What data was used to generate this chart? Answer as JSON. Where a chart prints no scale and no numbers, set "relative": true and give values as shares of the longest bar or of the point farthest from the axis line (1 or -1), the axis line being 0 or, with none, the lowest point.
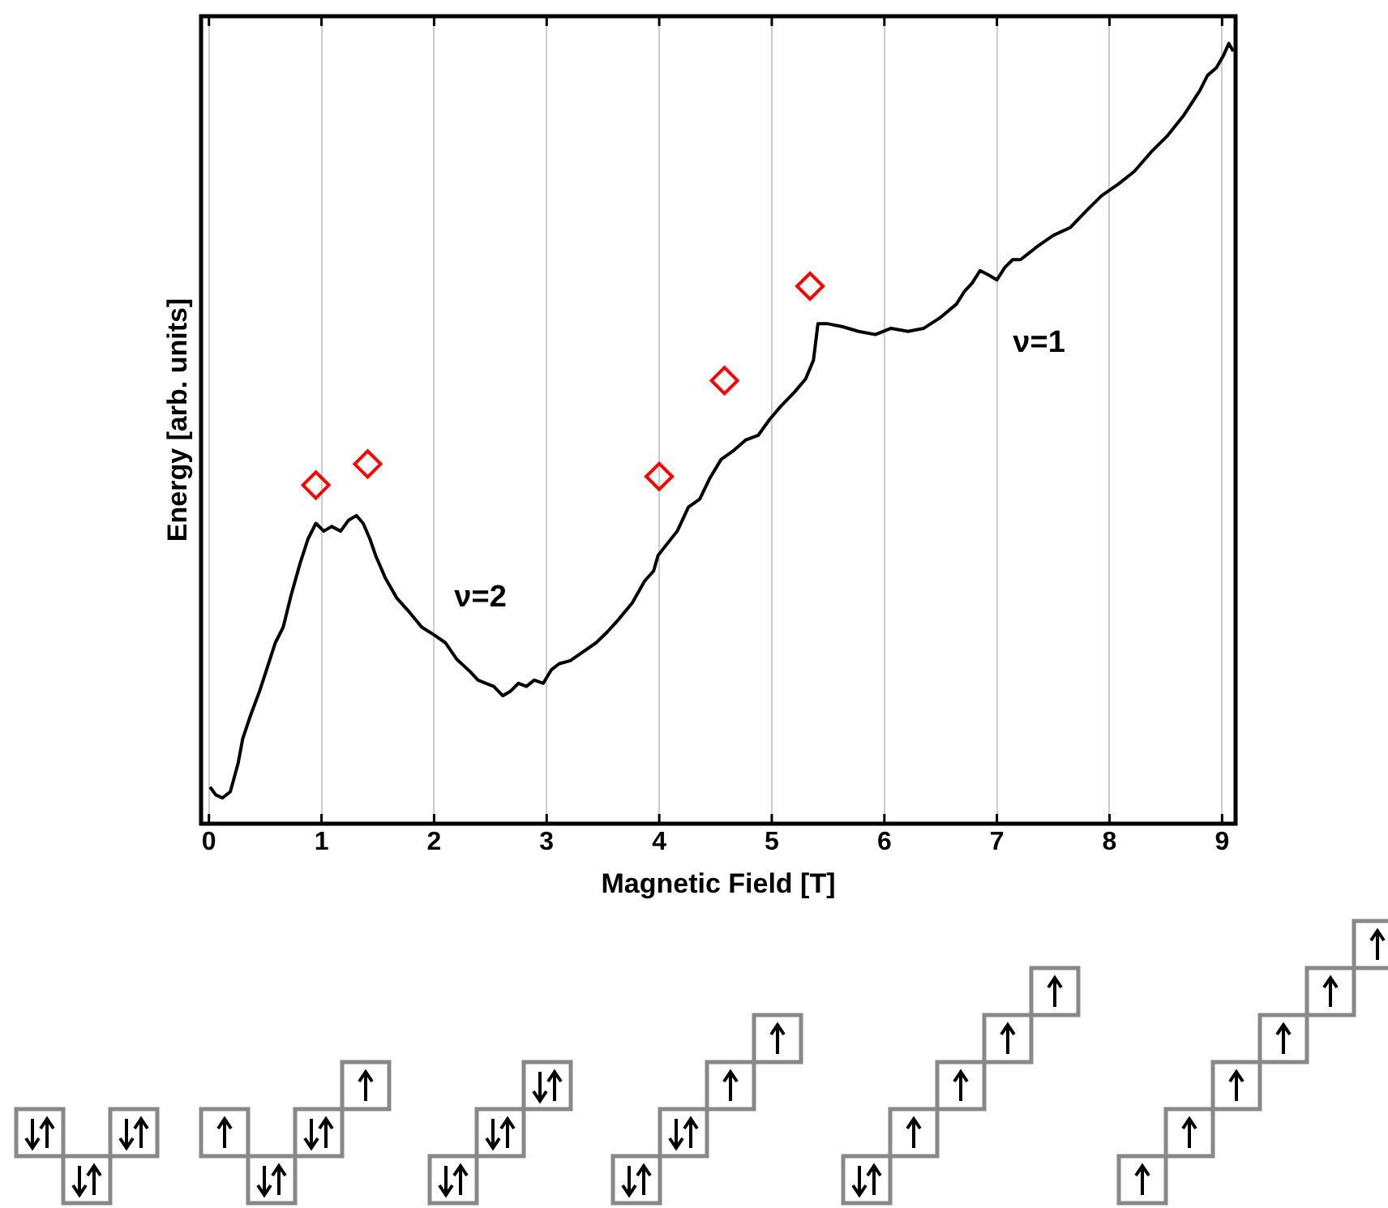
{
  "chart_data": {
    "type": "line",
    "xlabel": "Magnetic Field [T]",
    "ylabel": "Energy [arb. units]",
    "relative": true,
    "xlim": [
      -0.07,
      9.12
    ],
    "xticks": [
      0,
      1,
      2,
      3,
      4,
      5,
      6,
      7,
      8,
      9
    ],
    "grid": "x",
    "legend": false,
    "annotations": [
      "ν=2",
      "ν=1"
    ],
    "series": [
      {
        "type": "line",
        "color": "#000000",
        "marker": "none",
        "line_style": "solid",
        "x": [
          0.01,
          0.06,
          0.12,
          0.19,
          0.26,
          0.3,
          0.37,
          0.45,
          0.52,
          0.59,
          0.66,
          0.73,
          0.81,
          0.88,
          0.95,
          1.02,
          1.09,
          1.17,
          1.24,
          1.31,
          1.37,
          1.43,
          1.48,
          1.57,
          1.67,
          1.77,
          1.89,
          2.0,
          2.1,
          2.2,
          2.32,
          2.39,
          2.46,
          2.53,
          2.61,
          2.68,
          2.75,
          2.82,
          2.89,
          2.97,
          3.04,
          3.11,
          3.21,
          3.33,
          3.44,
          3.54,
          3.64,
          3.76,
          3.87,
          3.95,
          3.99,
          4.05,
          4.16,
          4.26,
          4.36,
          4.45,
          4.55,
          4.65,
          4.77,
          4.88,
          4.98,
          5.08,
          5.2,
          5.3,
          5.37,
          5.41,
          5.49,
          5.63,
          5.77,
          5.92,
          6.06,
          6.21,
          6.35,
          6.49,
          6.64,
          6.71,
          6.78,
          6.85,
          6.93,
          7.0,
          7.07,
          7.14,
          7.21,
          7.36,
          7.5,
          7.65,
          7.79,
          7.93,
          8.08,
          8.22,
          8.37,
          8.51,
          8.66,
          8.8,
          8.87,
          8.95,
          9.01,
          9.06,
          9.1
        ],
        "values": [
          0.047,
          0.037,
          0.033,
          0.041,
          0.078,
          0.109,
          0.139,
          0.17,
          0.201,
          0.232,
          0.252,
          0.293,
          0.334,
          0.365,
          0.385,
          0.375,
          0.381,
          0.375,
          0.389,
          0.395,
          0.385,
          0.365,
          0.344,
          0.314,
          0.289,
          0.273,
          0.252,
          0.242,
          0.232,
          0.211,
          0.195,
          0.184,
          0.18,
          0.176,
          0.164,
          0.17,
          0.18,
          0.176,
          0.184,
          0.18,
          0.197,
          0.205,
          0.209,
          0.221,
          0.232,
          0.246,
          0.262,
          0.283,
          0.311,
          0.324,
          0.344,
          0.355,
          0.375,
          0.406,
          0.416,
          0.443,
          0.467,
          0.477,
          0.492,
          0.498,
          0.518,
          0.535,
          0.553,
          0.57,
          0.594,
          0.641,
          0.641,
          0.637,
          0.631,
          0.627,
          0.635,
          0.631,
          0.635,
          0.648,
          0.666,
          0.682,
          0.693,
          0.709,
          0.703,
          0.697,
          0.713,
          0.723,
          0.723,
          0.74,
          0.754,
          0.764,
          0.785,
          0.805,
          0.82,
          0.836,
          0.861,
          0.881,
          0.908,
          0.939,
          0.959,
          0.969,
          0.984,
          1.0,
          0.99
        ]
      },
      {
        "type": "scatter",
        "color": "#ff0000",
        "marker": "diamond",
        "x": [
          0.95,
          1.41,
          4.0,
          4.58,
          5.34
        ],
        "values": [
          0.434,
          0.461,
          0.445,
          0.568,
          0.689
        ]
      }
    ]
  }
}
